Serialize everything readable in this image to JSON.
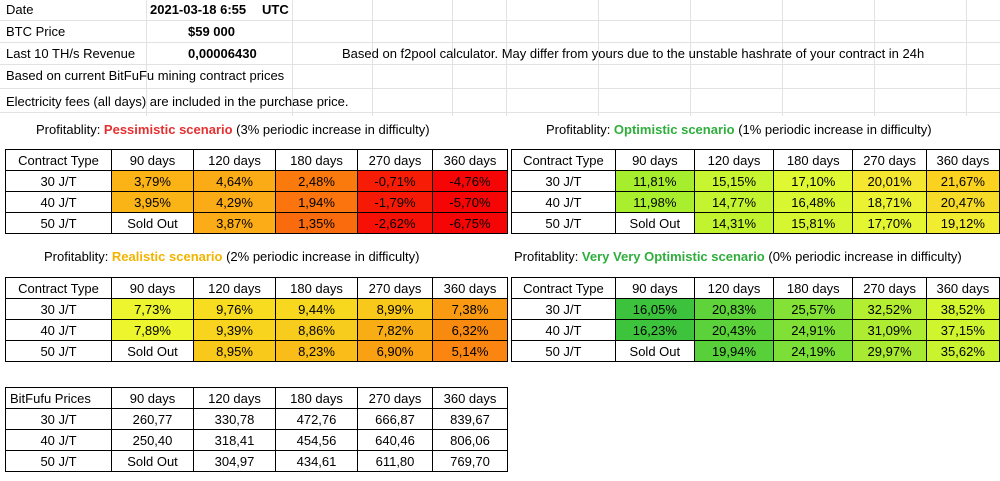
{
  "header": {
    "date_label": "Date",
    "date_value": "2021-03-18 6:55",
    "date_tz": "UTC",
    "btc_label": "BTC Price",
    "btc_value": "$59 000",
    "revenue_label": "Last 10 TH/s Revenue",
    "revenue_value": "0,00006430",
    "revenue_note": "Based on f2pool calculator. May differ from yours due to the unstable hashrate of your contract in 24h",
    "note1": "Based on current BitFuFu mining contract prices",
    "note2": "Electricity fees (all days) are included in the purchase price."
  },
  "columns": [
    "Contract Type",
    "90 days",
    "120 days",
    "180 days",
    "270 days",
    "360 days"
  ],
  "rows": [
    "30 J/T",
    "40 J/T",
    "50 J/T"
  ],
  "tables": {
    "pessimistic": {
      "prefix": "Profitablity: ",
      "name": "Pessimistic scenario",
      "suffix": " (3% periodic increase in difficulty)",
      "name_color": "#e53030",
      "values": [
        [
          "3,79%",
          "4,64%",
          "2,48%",
          "-0,71%",
          "-4,76%"
        ],
        [
          "3,95%",
          "4,29%",
          "1,94%",
          "-1,79%",
          "-5,70%"
        ],
        [
          "Sold Out",
          "3,87%",
          "1,35%",
          "-2,62%",
          "-6,75%"
        ]
      ],
      "colors": [
        [
          "#fbb316",
          "#fbab16",
          "#fb7a0e",
          "#f61c06",
          "#f50505"
        ],
        [
          "#fbb416",
          "#fbab16",
          "#fb740d",
          "#f61a06",
          "#f50505"
        ],
        [
          "#ffffff",
          "#fbac16",
          "#f96b0c",
          "#f61006",
          "#f50505"
        ]
      ]
    },
    "optimistic": {
      "prefix": "Profitablity: ",
      "name": "Optimistic scenario",
      "suffix": " (1% periodic increase in difficulty)",
      "name_color": "#2fae3c",
      "values": [
        [
          "11,81%",
          "15,15%",
          "17,10%",
          "20,01%",
          "21,67%"
        ],
        [
          "11,98%",
          "14,77%",
          "16,48%",
          "18,71%",
          "20,47%"
        ],
        [
          "Sold Out",
          "14,31%",
          "15,81%",
          "17,70%",
          "19,12%"
        ]
      ],
      "colors": [
        [
          "#a6ee2d",
          "#c7f52f",
          "#dff831",
          "#f5e72f",
          "#fad21f"
        ],
        [
          "#a9ef2d",
          "#c4f42f",
          "#d9f730",
          "#eaf231",
          "#f6dc28"
        ],
        [
          "#ffffff",
          "#c1f32f",
          "#d5f630",
          "#e4f531",
          "#f1ec30"
        ]
      ]
    },
    "realistic": {
      "prefix": "Profitablity: ",
      "name": "Realistic scenario",
      "suffix": " (2% periodic increase in difficulty)",
      "name_color": "#f3b400",
      "values": [
        [
          "7,73%",
          "9,76%",
          "9,44%",
          "8,99%",
          "7,38%"
        ],
        [
          "7,89%",
          "9,39%",
          "8,86%",
          "7,82%",
          "6,32%"
        ],
        [
          "Sold Out",
          "8,95%",
          "8,23%",
          "6,90%",
          "5,14%"
        ]
      ],
      "colors": [
        [
          "#ecf52d",
          "#f8dc1f",
          "#f8d81f",
          "#f8c81b",
          "#f99a12"
        ],
        [
          "#edf52d",
          "#f8d41e",
          "#f8cc1c",
          "#f9ad15",
          "#f98a10"
        ],
        [
          "#ffffff",
          "#f8c81b",
          "#f9bc18",
          "#f9a013",
          "#fa8510"
        ]
      ]
    },
    "very_optimistic": {
      "prefix": "Profitablity: ",
      "name": "Very Very Optimistic scenario",
      "suffix": " (0% periodic increase in difficulty)",
      "name_color": "#2fae3c",
      "values": [
        [
          "16,05%",
          "20,83%",
          "25,57%",
          "32,52%",
          "38,52%"
        ],
        [
          "16,23%",
          "20,43%",
          "24,91%",
          "31,09%",
          "37,15%"
        ],
        [
          "Sold Out",
          "19,94%",
          "24,19%",
          "29,97%",
          "35,62%"
        ]
      ],
      "colors": [
        [
          "#3cc23c",
          "#5ed33a",
          "#84e236",
          "#b4ee31",
          "#d4f62e"
        ],
        [
          "#3ec33c",
          "#5bd23a",
          "#80e036",
          "#aeec32",
          "#cff52e"
        ],
        [
          "#ffffff",
          "#58d03a",
          "#7bdf37",
          "#a8ea32",
          "#c9f32f"
        ]
      ]
    },
    "prices": {
      "title": "BitFufu Prices",
      "values": [
        [
          "260,77",
          "330,78",
          "472,76",
          "666,87",
          "839,67"
        ],
        [
          "250,40",
          "318,41",
          "454,56",
          "640,46",
          "806,06"
        ],
        [
          "Sold Out",
          "304,97",
          "434,61",
          "611,80",
          "769,70"
        ]
      ]
    }
  }
}
